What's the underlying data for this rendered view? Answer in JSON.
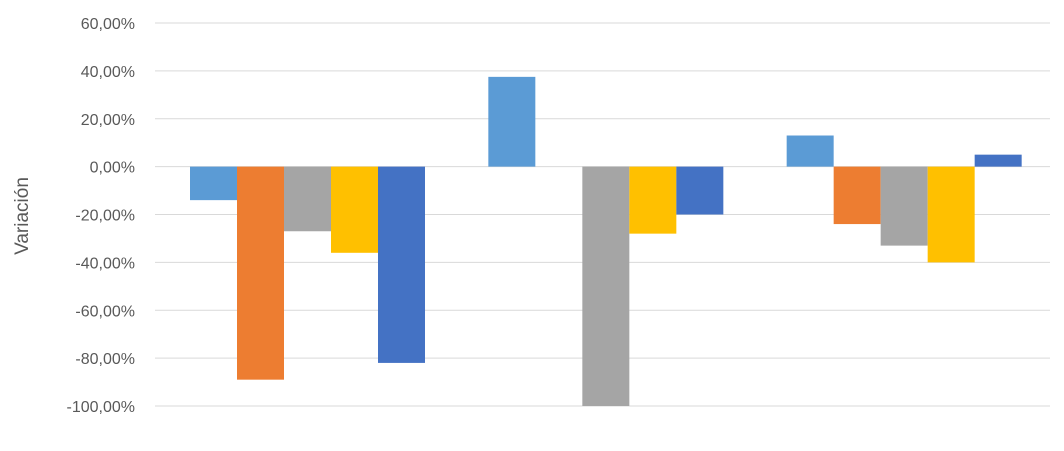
{
  "chart_data": {
    "type": "bar",
    "title": "",
    "xlabel": "",
    "ylabel": "Variación",
    "ylim": [
      -100,
      60
    ],
    "y_ticks": [
      60,
      40,
      20,
      0,
      -20,
      -40,
      -60,
      -80,
      -100
    ],
    "y_tick_labels": [
      "60,00%",
      "40,00%",
      "20,00%",
      "0,00%",
      "-20,00%",
      "-40,00%",
      "-60,00%",
      "-80,00%",
      "-100,00%"
    ],
    "grid": true,
    "legend": "none",
    "categories": [
      "",
      "",
      ""
    ],
    "series": [
      {
        "color": "#5B9BD5",
        "values": [
          -14,
          37.5,
          13
        ]
      },
      {
        "color": "#ED7D31",
        "values": [
          -89,
          0,
          -24
        ]
      },
      {
        "color": "#A5A5A5",
        "values": [
          -27,
          -100,
          -33
        ]
      },
      {
        "color": "#FFC000",
        "values": [
          -36,
          -28,
          -40
        ]
      },
      {
        "color": "#4472C4",
        "values": [
          -82,
          -20,
          5
        ]
      }
    ]
  }
}
